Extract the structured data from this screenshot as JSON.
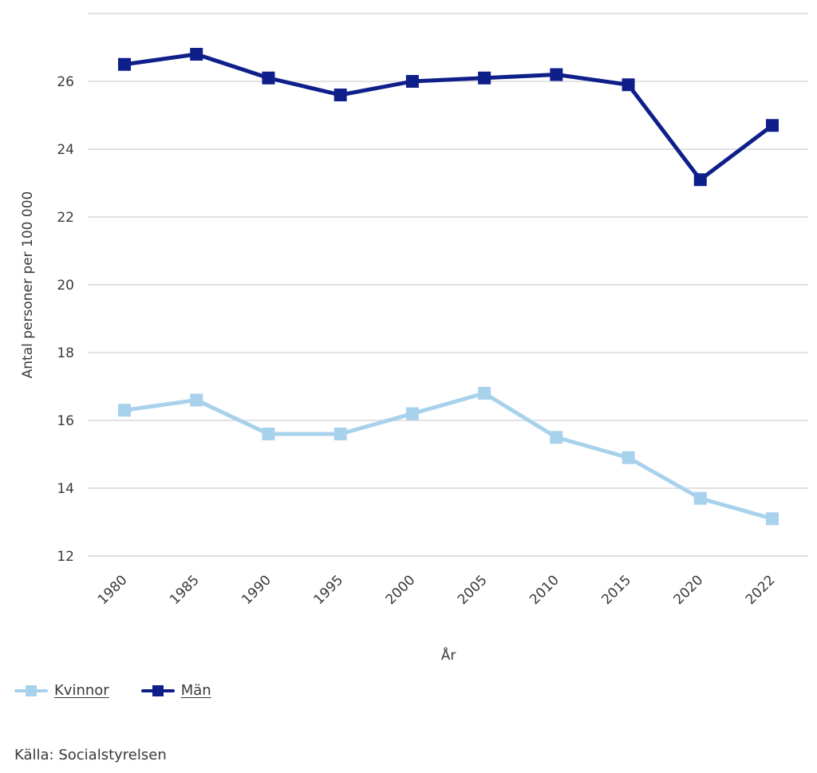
{
  "chart_data": {
    "type": "line",
    "title": "",
    "xlabel": "År",
    "ylabel": "Antal personer per 100 000",
    "ylim": [
      12,
      28
    ],
    "yticks": [
      12,
      14,
      16,
      18,
      20,
      22,
      24,
      26
    ],
    "grid": true,
    "categories": [
      "1980",
      "1985",
      "1990",
      "1995",
      "2000",
      "2005",
      "2010",
      "2015",
      "2020",
      "2022"
    ],
    "series": [
      {
        "name": "Kvinnor",
        "color": "#a8d1ec",
        "marker": "square",
        "values": [
          16.3,
          16.6,
          15.6,
          15.6,
          16.2,
          16.8,
          15.5,
          14.9,
          13.7,
          13.1
        ]
      },
      {
        "name": "Män",
        "color": "#0f1f8a",
        "marker": "square",
        "values": [
          26.5,
          26.8,
          26.1,
          25.6,
          26.0,
          26.1,
          26.2,
          25.9,
          23.1,
          24.7
        ]
      }
    ],
    "legend_position": "bottom-left"
  },
  "legend": [
    {
      "label": "Kvinnor",
      "color": "#a8d1ec"
    },
    {
      "label": "Män",
      "color": "#0f1f8a"
    }
  ],
  "source": "Källa: Socialstyrelsen"
}
